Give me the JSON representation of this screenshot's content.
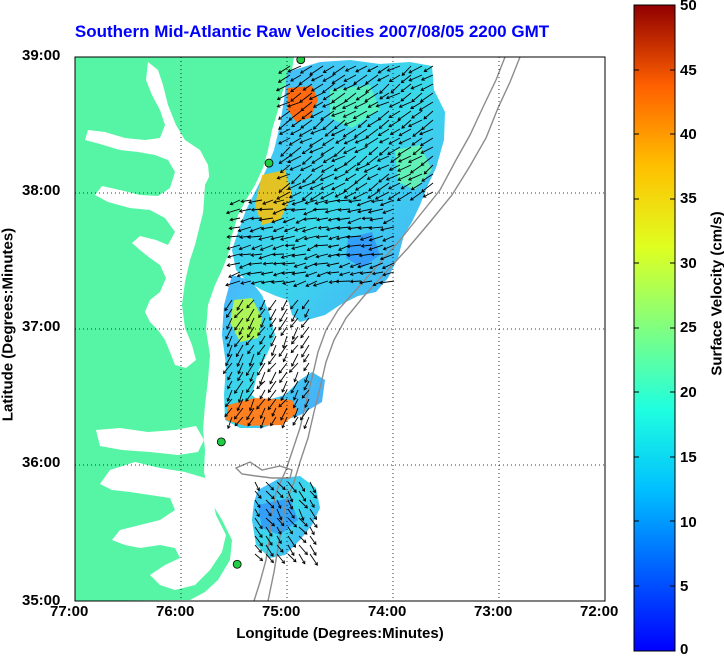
{
  "title": "Southern Mid-Atlantic Raw Velocities 2007/08/05 2200 GMT",
  "xlabel": "Longitude (Degrees:Minutes)",
  "ylabel": "Latitude (Degrees:Minutes)",
  "colorbar": {
    "label": "Surface Velocity (cm/s)",
    "ticks": [
      "0",
      "5",
      "10",
      "15",
      "20",
      "25",
      "30",
      "35",
      "40",
      "45",
      "50"
    ],
    "range": [
      0,
      50
    ],
    "colormap": "jet"
  },
  "x_ticks": [
    "77:00",
    "76:00",
    "75:00",
    "74:00",
    "73:00",
    "72:00"
  ],
  "y_ticks": [
    "39:00",
    "38:00",
    "37:00",
    "36:00",
    "35:00"
  ],
  "map": {
    "lon_range": [
      -77,
      -72
    ],
    "lat_range": [
      35,
      39
    ],
    "grid": "dotted",
    "land_color": "#55f5a5",
    "bathymetry_color": "#8c8c8c",
    "station_color": "#22cc44",
    "stations_lonlat": [
      [
        -74.87,
        38.98
      ],
      [
        -75.17,
        38.22
      ],
      [
        -75.62,
        36.17
      ],
      [
        -75.47,
        35.27
      ]
    ]
  }
}
